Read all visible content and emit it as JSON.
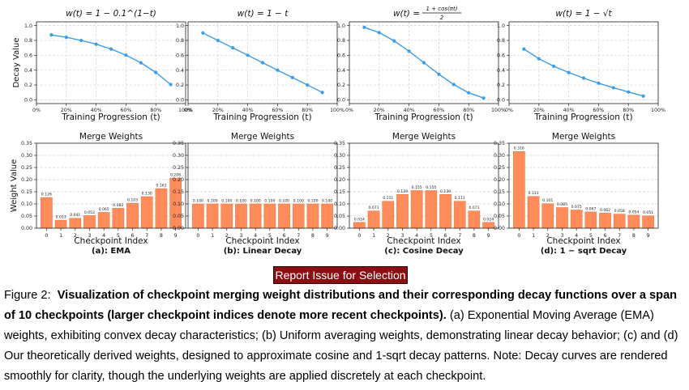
{
  "chart_data": [
    {
      "type": "line",
      "title": "w(t) = 1 − 0.1^(1−t)",
      "xlabel": "Training Progression (t)",
      "ylabel": "Decay Value",
      "x": [
        0.1,
        0.2,
        0.3,
        0.4,
        0.5,
        0.6,
        0.7,
        0.8,
        0.9
      ],
      "values": [
        0.874,
        0.842,
        0.8,
        0.749,
        0.684,
        0.602,
        0.499,
        0.369,
        0.206
      ],
      "xlim": [
        0,
        1
      ],
      "ylim": [
        -0.05,
        1.05
      ],
      "xticks": [
        "0%",
        "20%",
        "40%",
        "60%",
        "80%",
        "100%"
      ],
      "yticks": [
        "0.0",
        "0.2",
        "0.4",
        "0.6",
        "0.8",
        "1.0"
      ]
    },
    {
      "type": "line",
      "title": "w(t) = 1 − t",
      "xlabel": "Training Progression (t)",
      "ylabel": "",
      "x": [
        0.1,
        0.2,
        0.3,
        0.4,
        0.5,
        0.6,
        0.7,
        0.8,
        0.9
      ],
      "values": [
        0.9,
        0.8,
        0.7,
        0.6,
        0.5,
        0.4,
        0.3,
        0.2,
        0.1
      ],
      "xlim": [
        0,
        1
      ],
      "ylim": [
        -0.05,
        1.05
      ],
      "xticks": [
        "0%",
        "20%",
        "40%",
        "60%",
        "80%",
        "100%"
      ],
      "yticks": [
        "0.0",
        "0.2",
        "0.4",
        "0.6",
        "0.8",
        "1.0"
      ]
    },
    {
      "type": "line",
      "title_main": "w(t) =",
      "title_num": "1 + cos(πt)",
      "title_den": "2",
      "xlabel": "Training Progression (t)",
      "ylabel": "",
      "x": [
        0.1,
        0.2,
        0.3,
        0.4,
        0.5,
        0.6,
        0.7,
        0.8,
        0.9
      ],
      "values": [
        0.976,
        0.905,
        0.794,
        0.655,
        0.5,
        0.345,
        0.206,
        0.095,
        0.024
      ],
      "xlim": [
        0,
        1
      ],
      "ylim": [
        -0.05,
        1.05
      ],
      "xticks": [
        "0%",
        "20%",
        "40%",
        "60%",
        "80%",
        "100%"
      ],
      "yticks": [
        "0.0",
        "0.2",
        "0.4",
        "0.6",
        "0.8",
        "1.0"
      ]
    },
    {
      "type": "line",
      "title": "w(t) = 1 − √t",
      "xlabel": "Training Progression (t)",
      "ylabel": "",
      "x": [
        0.1,
        0.2,
        0.3,
        0.4,
        0.5,
        0.6,
        0.7,
        0.8,
        0.9
      ],
      "values": [
        0.684,
        0.553,
        0.452,
        0.368,
        0.293,
        0.225,
        0.163,
        0.106,
        0.051
      ],
      "xlim": [
        0,
        1
      ],
      "ylim": [
        -0.05,
        1.05
      ],
      "xticks": [
        "0%",
        "20%",
        "40%",
        "60%",
        "80%",
        "100%"
      ],
      "yticks": [
        "0.0",
        "0.2",
        "0.4",
        "0.6",
        "0.8",
        "1.0"
      ]
    },
    {
      "type": "bar",
      "title": "Merge Weights",
      "xlabel": "Checkpoint Index",
      "ylabel": "Weight Value",
      "sublabel": "(a):  EMA",
      "categories": [
        "0",
        "1",
        "2",
        "3",
        "4",
        "5",
        "6",
        "7",
        "8",
        "9"
      ],
      "values": [
        0.126,
        0.033,
        0.041,
        0.052,
        0.065,
        0.082,
        0.103,
        0.13,
        0.163,
        0.206
      ],
      "labels": [
        "0.126",
        "0.033",
        "0.041",
        "0.052",
        "0.065",
        "0.082",
        "0.103",
        "0.130",
        "0.163",
        "0.206"
      ],
      "ylim": [
        0,
        0.35
      ],
      "yticks": [
        "0.00",
        "0.05",
        "0.10",
        "0.15",
        "0.20",
        "0.25",
        "0.30",
        "0.35"
      ]
    },
    {
      "type": "bar",
      "title": "Merge Weights",
      "xlabel": "Checkpoint Index",
      "ylabel": "",
      "sublabel": "(b):  Linear Decay",
      "categories": [
        "0",
        "1",
        "2",
        "3",
        "4",
        "5",
        "6",
        "7",
        "8",
        "9"
      ],
      "values": [
        0.1,
        0.1,
        0.1,
        0.1,
        0.1,
        0.1,
        0.1,
        0.1,
        0.1,
        0.1
      ],
      "labels": [
        "0.100",
        "0.100",
        "0.100",
        "0.100",
        "0.100",
        "0.100",
        "0.100",
        "0.100",
        "0.100",
        "0.100"
      ],
      "ylim": [
        0,
        0.35
      ],
      "yticks": [
        "0.00",
        "0.05",
        "0.10",
        "0.15",
        "0.20",
        "0.25",
        "0.30",
        "0.35"
      ]
    },
    {
      "type": "bar",
      "title": "Merge Weights",
      "xlabel": "Checkpoint Index",
      "ylabel": "",
      "sublabel": "(c):  Cosine Decay",
      "categories": [
        "0",
        "1",
        "2",
        "3",
        "4",
        "5",
        "6",
        "7",
        "8",
        "9"
      ],
      "values": [
        0.024,
        0.071,
        0.111,
        0.139,
        0.155,
        0.155,
        0.139,
        0.111,
        0.071,
        0.024
      ],
      "labels": [
        "0.024",
        "0.071",
        "0.111",
        "0.139",
        "0.155",
        "0.155",
        "0.139",
        "0.111",
        "0.071",
        "0.024"
      ],
      "ylim": [
        0,
        0.35
      ],
      "yticks": [
        "0.00",
        "0.05",
        "0.10",
        "0.15",
        "0.20",
        "0.25",
        "0.30",
        "0.35"
      ]
    },
    {
      "type": "bar",
      "title": "Merge Weights",
      "xlabel": "Checkpoint Index",
      "ylabel": "",
      "sublabel": "(d):  1 − sqrt Decay",
      "categories": [
        "0",
        "1",
        "2",
        "3",
        "4",
        "5",
        "6",
        "7",
        "8",
        "9"
      ],
      "values": [
        0.316,
        0.131,
        0.101,
        0.085,
        0.075,
        0.067,
        0.062,
        0.058,
        0.054,
        0.051
      ],
      "labels": [
        "0.316",
        "0.131",
        "0.101",
        "0.085",
        "0.075",
        "0.067",
        "0.062",
        "0.058",
        "0.054",
        "0.051"
      ],
      "ylim": [
        0,
        0.35
      ],
      "yticks": [
        "0.00",
        "0.05",
        "0.10",
        "0.15",
        "0.20",
        "0.25",
        "0.30",
        "0.35"
      ]
    }
  ],
  "colors": {
    "line": "#3d9de6",
    "bar": "#ff8c5a",
    "bar_edge": "#e2703e",
    "button": "#8b0f12"
  },
  "report_button": {
    "label": "Report Issue for Selection"
  },
  "caption": {
    "label": "Figure 2:",
    "bold": "Visualization of checkpoint merging weight distributions and their corresponding decay functions over a span of 10 checkpoints (larger checkpoint indices denote more recent checkpoints).",
    "body": "(a) Exponential Moving Average (EMA) weights, exhibiting convex decay characteristics; (b) Uniform averaging weights, demonstrating linear decay behavior; (c) and (d) Our theoretically derived weights, designed to approximate cosine and 1-sqrt decay patterns. Note: Decay curves are rendered smoothly for clarity, though the underlying weights are applied discretely at each checkpoint."
  }
}
